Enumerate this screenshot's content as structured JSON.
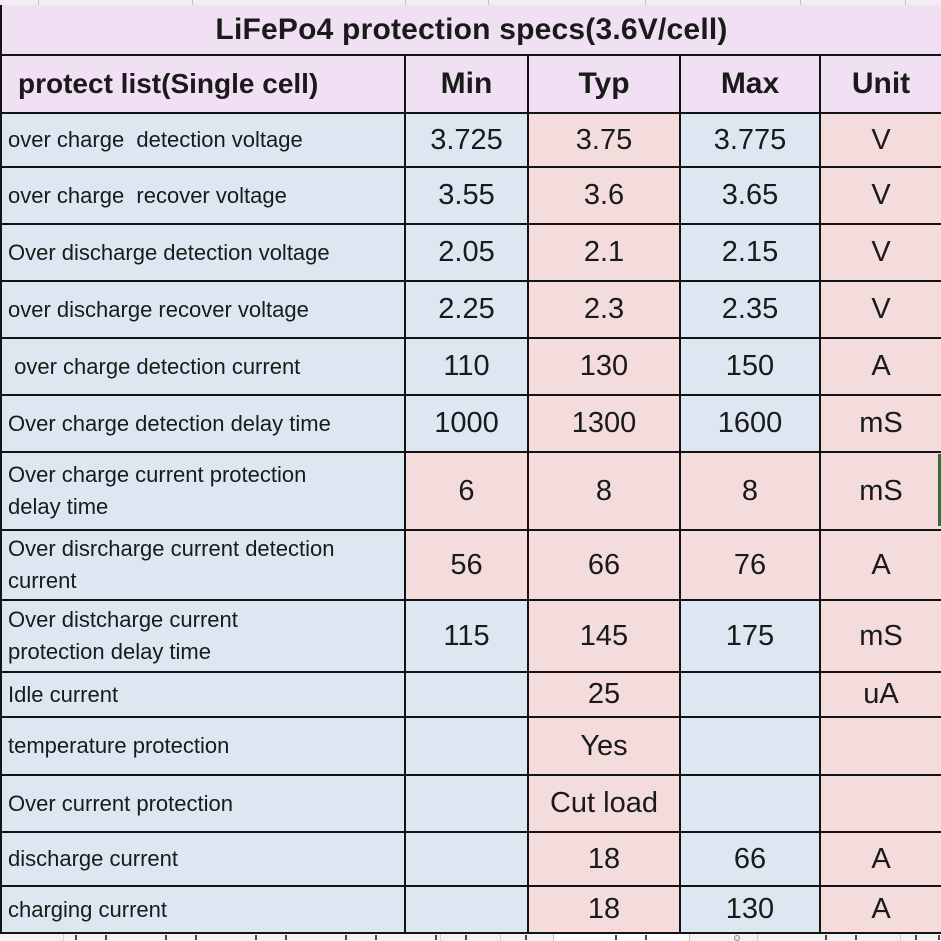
{
  "title": "LiFePo4 protection specs(3.6V/cell)",
  "columns": {
    "label": "protect list(Single cell)",
    "min": "Min",
    "typ": "Typ",
    "max": "Max",
    "unit": "Unit"
  },
  "colors": {
    "header_bg": "#f1e0f3",
    "blue_bg": "#dde7f1",
    "pink_bg": "#f3dcdb",
    "border": "#131313",
    "text": "#1a1a1a",
    "selection_green": "#2e6f3a"
  },
  "rows": [
    {
      "label": "over charge  detection voltage",
      "min": "3.725",
      "typ": "3.75",
      "max": "3.775",
      "unit": "V",
      "highlight": "typ"
    },
    {
      "label": "over charge  recover voltage",
      "min": "3.55",
      "typ": "3.6",
      "max": "3.65",
      "unit": "V",
      "highlight": "typ"
    },
    {
      "label": "Over discharge detection voltage",
      "min": "2.05",
      "typ": "2.1",
      "max": "2.15",
      "unit": "V",
      "highlight": "typ"
    },
    {
      "label": "over discharge recover voltage",
      "min": "2.25",
      "typ": "2.3",
      "max": "2.35",
      "unit": "V",
      "highlight": "typ"
    },
    {
      "label": " over charge detection current",
      "min": "110",
      "typ": "130",
      "max": "150",
      "unit": "A",
      "highlight": "typ"
    },
    {
      "label": "Over charge detection delay time",
      "min": "1000",
      "typ": "1300",
      "max": "1600",
      "unit": "mS",
      "highlight": "typ"
    },
    {
      "label": "Over charge current protection\ndelay time",
      "min": "6",
      "typ": "8",
      "max": "8",
      "unit": "mS",
      "highlight": "all"
    },
    {
      "label": "Over disrcharge current detection\ncurrent",
      "min": "56",
      "typ": "66",
      "max": "76",
      "unit": "A",
      "highlight": "all"
    },
    {
      "label": "Over distcharge current\nprotection delay time",
      "min": "115",
      "typ": "145",
      "max": "175",
      "unit": "mS",
      "highlight": "typ"
    },
    {
      "label": "Idle current",
      "min": "",
      "typ": "25",
      "max": "",
      "unit": "uA",
      "highlight": "typ"
    },
    {
      "label": "temperature protection",
      "min": "",
      "typ": "Yes",
      "max": "",
      "unit": "",
      "highlight": "typ"
    },
    {
      "label": "Over current protection",
      "min": "",
      "typ": "Cut load",
      "max": "",
      "unit": "",
      "highlight": "typ"
    },
    {
      "label": "discharge current",
      "min": "",
      "typ": "18",
      "max": "66",
      "unit": "A",
      "highlight": "typ"
    },
    {
      "label": "charging current",
      "min": "",
      "typ": "18",
      "max": "130",
      "unit": "A",
      "highlight": "typ"
    }
  ]
}
